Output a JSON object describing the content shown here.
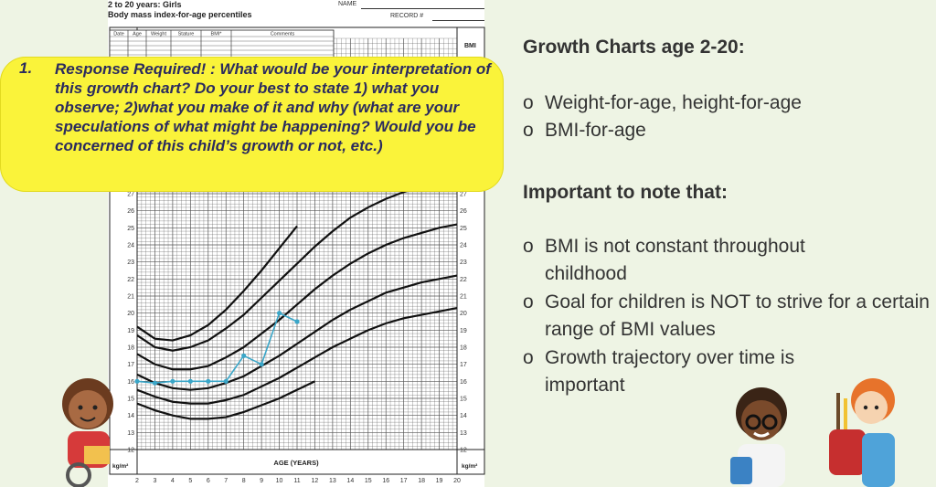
{
  "chart_header": {
    "line1": "2 to 20 years: Girls",
    "line2": "Body mass index-for-age percentiles",
    "name_label": "NAME",
    "record_label": "RECORD #"
  },
  "table_headers": [
    "Date",
    "Age",
    "Weight",
    "Stature",
    "BMI*",
    "Comments"
  ],
  "callout": {
    "number": "1.",
    "text": "Response Required! : What would be your interpretation of this growth chart? Do your best to state 1) what you observe; 2)what you make of it and why (what are your speculations of what might be happening? Would you be concerned of this child’s growth or not, etc.)"
  },
  "right_panel": {
    "heading1": "Growth Charts age 2-20:",
    "bullets1": [
      "Weight-for-age, height-for-age",
      "BMI-for-age"
    ],
    "heading2": "Important to note that:",
    "bullets2": [
      "BMI is not constant throughout childhood",
      "Goal for children is NOT to strive for a certain range of BMI values",
      "Growth trajectory over time is important"
    ],
    "bullet_glyph": "o"
  },
  "chart_data": {
    "type": "line",
    "xlabel": "AGE (YEARS)",
    "ylabel": "kg/m²",
    "bmi_label": "BMI",
    "x_ticks": [
      2,
      3,
      4,
      5,
      6,
      7,
      8,
      9,
      10,
      11,
      12,
      13,
      14,
      15,
      16,
      17,
      18,
      19,
      20
    ],
    "y_ticks": [
      12,
      13,
      14,
      15,
      16,
      17,
      18,
      19,
      20,
      21,
      22,
      23,
      24,
      25,
      26,
      27
    ],
    "xlim": [
      2,
      20
    ],
    "ylim": [
      12,
      27
    ],
    "percentile_curves": [
      {
        "x": [
          2,
          3,
          4,
          5,
          6,
          7,
          8,
          9,
          10,
          11,
          12
        ],
        "values": [
          14.7,
          14.3,
          14.0,
          13.8,
          13.8,
          13.9,
          14.2,
          14.6,
          15.0,
          15.5,
          16.0
        ]
      },
      {
        "x": [
          2,
          3,
          4,
          5,
          6,
          7,
          8,
          9,
          10,
          11,
          12,
          13,
          14,
          15,
          16,
          17,
          18,
          19,
          20
        ],
        "values": [
          15.5,
          15.1,
          14.8,
          14.7,
          14.7,
          14.9,
          15.2,
          15.7,
          16.2,
          16.8,
          17.4,
          18.0,
          18.5,
          19.0,
          19.4,
          19.7,
          19.9,
          20.1,
          20.3
        ]
      },
      {
        "x": [
          2,
          3,
          4,
          5,
          6,
          7,
          8,
          9,
          10,
          11,
          12,
          13,
          14,
          15,
          16,
          17,
          18,
          19,
          20
        ],
        "values": [
          16.4,
          15.9,
          15.6,
          15.5,
          15.6,
          15.9,
          16.3,
          16.9,
          17.5,
          18.2,
          18.9,
          19.6,
          20.2,
          20.7,
          21.2,
          21.5,
          21.8,
          22.0,
          22.2
        ]
      },
      {
        "x": [
          2,
          3,
          4,
          5,
          6,
          7,
          8,
          9,
          10,
          11,
          12,
          13,
          14,
          15,
          16,
          17,
          18,
          19,
          20
        ],
        "values": [
          17.6,
          17.0,
          16.7,
          16.7,
          16.9,
          17.4,
          18.0,
          18.8,
          19.6,
          20.5,
          21.4,
          22.2,
          22.9,
          23.5,
          24.0,
          24.4,
          24.7,
          25.0,
          25.2
        ]
      },
      {
        "x": [
          2,
          3,
          4,
          5,
          6,
          7,
          8,
          9,
          10,
          11,
          12,
          13,
          14,
          15,
          16,
          17,
          18,
          19,
          20
        ],
        "values": [
          18.7,
          18.0,
          17.8,
          18.0,
          18.4,
          19.1,
          19.9,
          20.9,
          21.9,
          22.9,
          23.9,
          24.8,
          25.6,
          26.2,
          26.7,
          27.1,
          27.4,
          27.6,
          27.8
        ]
      },
      {
        "x": [
          2,
          3,
          4,
          5,
          6,
          7,
          8,
          9,
          10,
          11
        ],
        "values": [
          19.2,
          18.5,
          18.4,
          18.7,
          19.3,
          20.2,
          21.3,
          22.5,
          23.8,
          25.1
        ]
      }
    ],
    "patient_series": {
      "x": [
        2.0,
        3.0,
        4.0,
        5.0,
        6.0,
        7.0,
        8.0,
        9.0,
        10.0,
        11.0
      ],
      "values": [
        16.0,
        15.9,
        16.0,
        16.0,
        16.0,
        16.0,
        17.5,
        17.0,
        20.0,
        19.5
      ]
    },
    "colors": {
      "patient": "#3aa6c8",
      "curve": "#111111",
      "grid": "#555555",
      "background": "#ffffff"
    }
  }
}
